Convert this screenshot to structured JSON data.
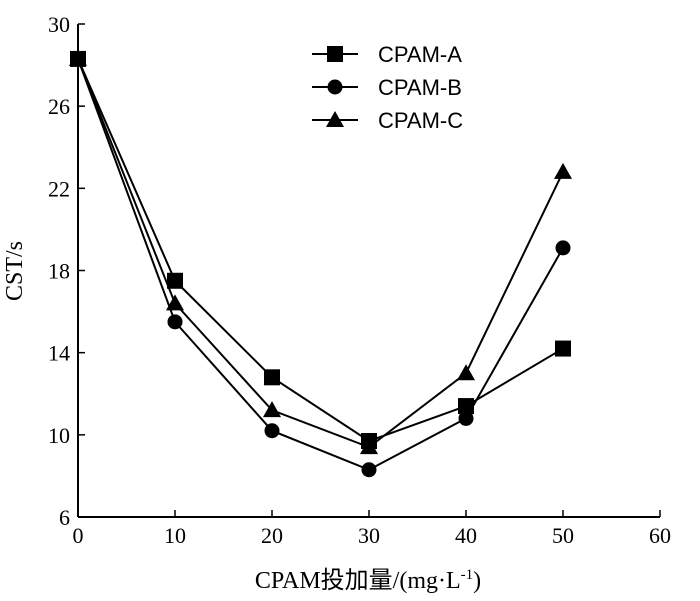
{
  "chart_data": {
    "type": "line",
    "x": [
      0,
      10,
      20,
      30,
      40,
      50
    ],
    "series": [
      {
        "name": "CPAM-A",
        "marker": "square",
        "values": [
          28.3,
          17.5,
          12.8,
          9.7,
          11.4,
          14.2
        ]
      },
      {
        "name": "CPAM-B",
        "marker": "circle",
        "values": [
          28.3,
          15.5,
          10.2,
          8.3,
          10.8,
          19.1
        ]
      },
      {
        "name": "CPAM-C",
        "marker": "triangle",
        "values": [
          28.3,
          16.4,
          11.2,
          9.4,
          13.0,
          22.8
        ]
      }
    ],
    "xlabel": "CPAM投加量/(mg·L",
    "xlabel_sup": "-1",
    "xlabel_close": ")",
    "ylabel": "CST/s",
    "xlim": [
      0,
      60
    ],
    "ylim": [
      6,
      30
    ],
    "xticks": [
      0,
      10,
      20,
      30,
      40,
      50,
      60
    ],
    "yticks": [
      6,
      10,
      14,
      18,
      22,
      26,
      30
    ],
    "grid": false,
    "legend_position": "top-center",
    "line_color": "#000000"
  }
}
